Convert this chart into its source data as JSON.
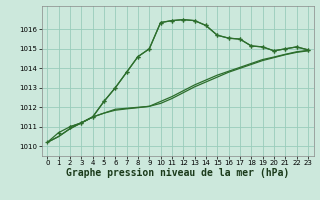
{
  "background_color": "#cce8dc",
  "grid_color": "#99ccbb",
  "line_color": "#2d6e2d",
  "marker_color": "#2d6e2d",
  "xlabel": "Graphe pression niveau de la mer (hPa)",
  "xlabel_fontsize": 7,
  "xlim": [
    -0.5,
    23.5
  ],
  "ylim": [
    1009.5,
    1017.2
  ],
  "yticks": [
    1010,
    1011,
    1012,
    1013,
    1014,
    1015,
    1016
  ],
  "xticks": [
    0,
    1,
    2,
    3,
    4,
    5,
    6,
    7,
    8,
    9,
    10,
    11,
    12,
    13,
    14,
    15,
    16,
    17,
    18,
    19,
    20,
    21,
    22,
    23
  ],
  "curve1_x": [
    0,
    1,
    2,
    3,
    4,
    5,
    6,
    7,
    8,
    9,
    10,
    11,
    12,
    13,
    14,
    15,
    16,
    17,
    18,
    19,
    20,
    21,
    22,
    23
  ],
  "curve1_y": [
    1010.2,
    1010.7,
    1011.0,
    1011.2,
    1011.5,
    1012.3,
    1013.0,
    1013.8,
    1014.6,
    1015.0,
    1016.35,
    1016.45,
    1016.5,
    1016.45,
    1016.2,
    1015.7,
    1015.55,
    1015.5,
    1015.15,
    1015.1,
    1014.9,
    1015.0,
    1015.1,
    1014.95
  ],
  "curve2_x": [
    0,
    1,
    2,
    3,
    4,
    5,
    6,
    7,
    8,
    9,
    10,
    11,
    12,
    13,
    14,
    15,
    16,
    17,
    18,
    19,
    20,
    21,
    22,
    23
  ],
  "curve2_y": [
    1010.2,
    1010.5,
    1010.9,
    1011.2,
    1011.5,
    1011.7,
    1011.9,
    1011.95,
    1012.0,
    1012.05,
    1012.2,
    1012.45,
    1012.75,
    1013.05,
    1013.3,
    1013.55,
    1013.8,
    1014.0,
    1014.2,
    1014.4,
    1014.55,
    1014.7,
    1014.82,
    1014.9
  ],
  "curve3_x": [
    0,
    1,
    2,
    3,
    4,
    5,
    6,
    7,
    8,
    9,
    10,
    11,
    12,
    13,
    14,
    15,
    16,
    17,
    18,
    19,
    20,
    21,
    22,
    23
  ],
  "curve3_y": [
    1010.2,
    1010.5,
    1010.9,
    1011.2,
    1011.5,
    1011.7,
    1011.85,
    1011.92,
    1011.98,
    1012.05,
    1012.3,
    1012.55,
    1012.85,
    1013.15,
    1013.4,
    1013.65,
    1013.85,
    1014.05,
    1014.25,
    1014.45,
    1014.58,
    1014.72,
    1014.85,
    1014.92
  ],
  "curve4_x": [
    2,
    3,
    4,
    5,
    6,
    7,
    8,
    9,
    10,
    11,
    12,
    13,
    14,
    15,
    16,
    17,
    18,
    19,
    20,
    21,
    22,
    23
  ],
  "curve4_y": [
    1011.0,
    1011.2,
    1011.5,
    1012.3,
    1013.0,
    1013.8,
    1014.6,
    1015.0,
    1016.35,
    1016.45,
    1016.5,
    1016.45,
    1016.2,
    1015.7,
    1015.55,
    1015.5,
    1015.15,
    1015.1,
    1014.9,
    1015.0,
    1015.1,
    1014.95
  ]
}
